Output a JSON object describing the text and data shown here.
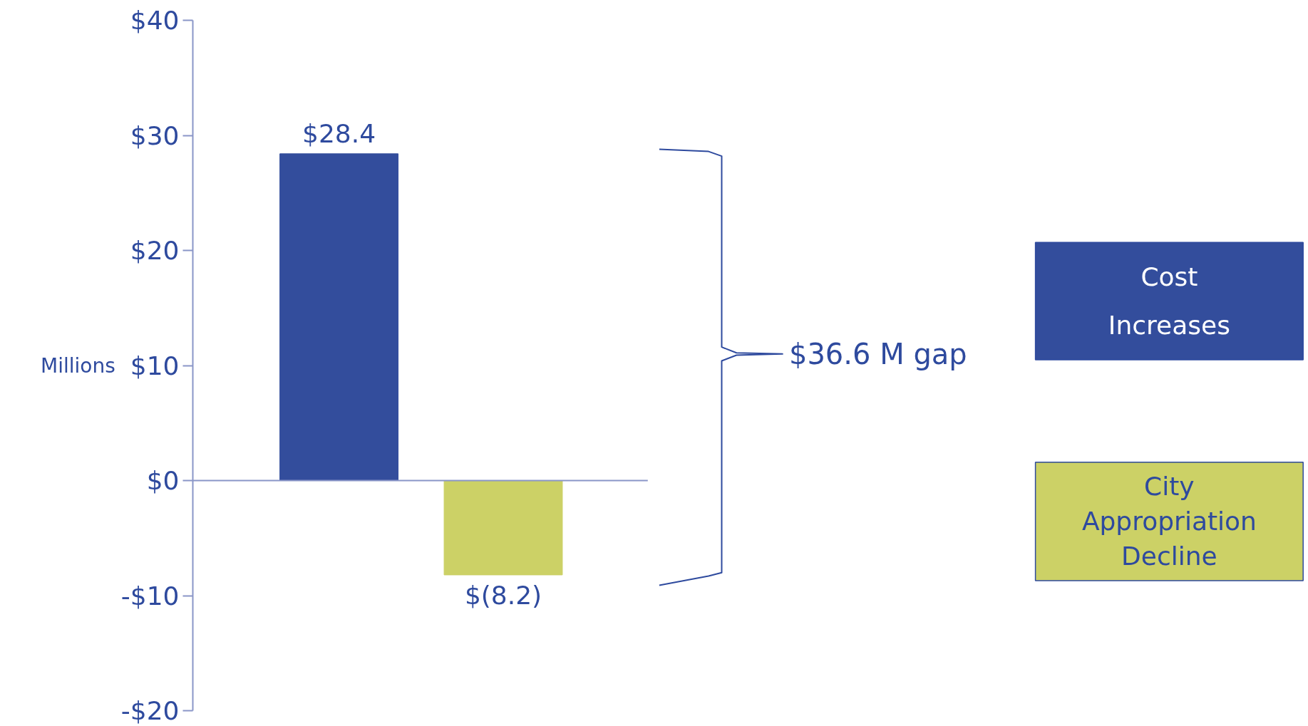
{
  "chart_data": {
    "type": "bar",
    "ylabel": "Millions",
    "categories": [
      null,
      null
    ],
    "series": [
      {
        "name": "Cost Increases",
        "color": "#334d9c",
        "values": [
          28.4,
          null
        ],
        "value_labels": [
          "$28.4",
          null
        ]
      },
      {
        "name": "City Appropriation Decline",
        "color": "#ccd166",
        "values": [
          null,
          -8.2
        ],
        "value_labels": [
          null,
          "$(8.2)"
        ]
      }
    ],
    "ref_lines": [
      {
        "axis": "y",
        "value": 0,
        "color": "#8a96c8"
      }
    ],
    "ylim": [
      -20,
      40
    ],
    "yticks": [
      {
        "value": -20,
        "label": "-$20"
      },
      {
        "value": -10,
        "label": "-$10"
      },
      {
        "value": 0,
        "label": "$0"
      },
      {
        "value": 10,
        "label": "$10"
      },
      {
        "value": 20,
        "label": "$20"
      },
      {
        "value": 30,
        "label": "$30"
      },
      {
        "value": 40,
        "label": "$40"
      }
    ],
    "annotations": [
      "$36.6 M gap"
    ],
    "legend": "right",
    "grid": false
  }
}
